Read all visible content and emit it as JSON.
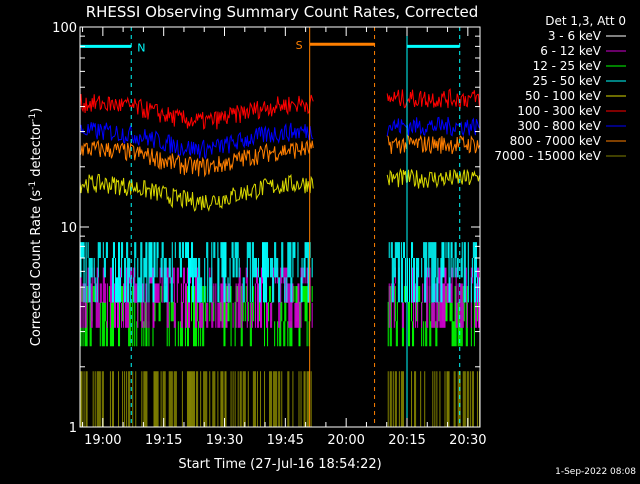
{
  "chart_data": {
    "type": "line",
    "title": "RHESSI Observing Summary Count Rates, Corrected",
    "xlabel": "Start Time (27-Jul-16 18:54:22)",
    "ylabel": "Corrected Count Rate (s",
    "ylabel_sup": "-1",
    "ylabel_mid": " detector",
    "ylabel_end": ")",
    "y_scale": "log",
    "ylim": [
      1,
      100
    ],
    "xlim": [
      "18:54:22",
      "20:33:00"
    ],
    "x_ticks": [
      "19:00",
      "19:15",
      "19:30",
      "19:45",
      "20:00",
      "20:15",
      "20:30"
    ],
    "y_tick_labels": [
      "1",
      "10",
      "100"
    ],
    "legend_title": "Det 1,3, Att 0",
    "legend_position": "top-right",
    "timestamp": "1-Sep-2022 08:08",
    "gaps": [
      [
        "19:52",
        "20:10"
      ]
    ],
    "series": [
      {
        "name": "3 - 6 keV",
        "color": "#000000",
        "level": 0
      },
      {
        "name": "6 - 12 keV",
        "color": "#d000d0",
        "level": 4.7
      },
      {
        "name": "12 - 25 keV",
        "color": "#00ff00",
        "level": 3.8
      },
      {
        "name": "25 - 50 keV",
        "color": "#00ffff",
        "level": 6.3
      },
      {
        "name": "50 - 100 keV",
        "color": "#d8d800",
        "level": 17.5
      },
      {
        "name": "100 - 300 keV",
        "color": "#ff0000",
        "level": 44
      },
      {
        "name": "300 - 800 keV",
        "color": "#0000ff",
        "level": 32
      },
      {
        "name": "800 - 7000 keV",
        "color": "#ff7f00",
        "level": 26
      },
      {
        "name": "7000 - 15000 keV",
        "color": "#808000",
        "level": 1.6
      }
    ],
    "annotations": [
      {
        "text": "N",
        "color": "#00ffff",
        "start": "18:54:22",
        "end": "19:07",
        "flag_level": 80
      },
      {
        "text": "S",
        "color": "#ff7f00",
        "start": "19:51",
        "end": "20:07",
        "flag_level": 82
      },
      {
        "text": "",
        "color": "#00ffff",
        "start": "20:15",
        "end": "20:28",
        "flag_level": 80
      }
    ]
  }
}
